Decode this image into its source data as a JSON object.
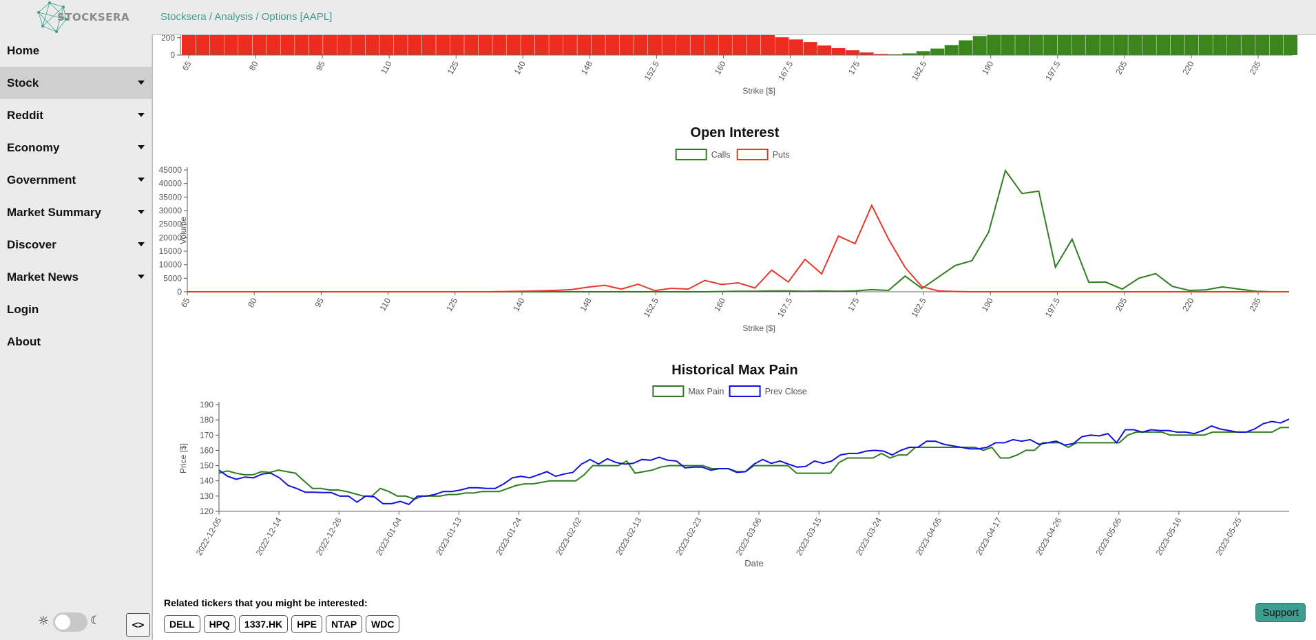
{
  "app": {
    "logo_text": "STOCKSERA",
    "accent": "#3f9d8f"
  },
  "breadcrumb": [
    "Stocksera",
    "Analysis",
    "Options [AAPL]"
  ],
  "sidebar": {
    "items": [
      {
        "label": "Home",
        "has_caret": false,
        "active": false
      },
      {
        "label": "Stock",
        "has_caret": true,
        "active": true
      },
      {
        "label": "Reddit",
        "has_caret": true,
        "active": false
      },
      {
        "label": "Economy",
        "has_caret": true,
        "active": false
      },
      {
        "label": "Government",
        "has_caret": true,
        "active": false
      },
      {
        "label": "Market Summary",
        "has_caret": true,
        "active": false
      },
      {
        "label": "Discover",
        "has_caret": true,
        "active": false
      },
      {
        "label": "Market News",
        "has_caret": true,
        "active": false
      },
      {
        "label": "Login",
        "has_caret": false,
        "active": false
      },
      {
        "label": "About",
        "has_caret": false,
        "active": false
      }
    ],
    "code_toggle": "<>"
  },
  "theme_toggle": {
    "sun_icon": "☼",
    "moon_icon": "☾"
  },
  "related": {
    "label": "Related tickers that you might be interested:",
    "tickers": [
      "DELL",
      "HPQ",
      "1337.HK",
      "HPE",
      "NTAP",
      "WDC"
    ]
  },
  "support": {
    "label": "Support"
  },
  "chart_data": [
    {
      "type": "bar",
      "title": "",
      "xlabel": "Strike [$]",
      "ylabel": "",
      "ylim": [
        0,
        250
      ],
      "y_ticks": [
        0,
        200
      ],
      "tick_labels": [
        "65",
        "80",
        "95",
        "110",
        "125",
        "140",
        "148",
        "152.5",
        "160",
        "167.5",
        "175",
        "182.5",
        "190",
        "197.5",
        "205",
        "220",
        "235"
      ],
      "red_values": [
        250,
        250,
        250,
        250,
        250,
        250,
        250,
        250,
        250,
        250,
        250,
        250,
        250,
        250,
        250,
        250,
        250,
        250,
        250,
        250,
        250,
        250,
        250,
        250,
        250,
        250,
        250,
        250,
        250,
        250,
        250,
        250,
        250,
        250,
        250,
        250,
        250,
        250,
        250,
        250,
        250,
        240,
        205,
        180,
        150,
        110,
        80,
        55,
        30,
        12
      ],
      "green_values": [
        8,
        20,
        45,
        75,
        115,
        170,
        220,
        250,
        250,
        250,
        250,
        250,
        250,
        250,
        250,
        250,
        250,
        250,
        250,
        250,
        250,
        250,
        250,
        250,
        250,
        250,
        250,
        250,
        250
      ]
    },
    {
      "type": "line",
      "title": "Open Interest",
      "xlabel": "Strike [$]",
      "ylabel": "Volume",
      "ylim": [
        0,
        45000
      ],
      "y_ticks": [
        0,
        5000,
        10000,
        15000,
        20000,
        25000,
        30000,
        35000,
        40000,
        45000
      ],
      "tick_labels": [
        "65",
        "80",
        "95",
        "110",
        "125",
        "140",
        "148",
        "152.5",
        "160",
        "167.5",
        "175",
        "182.5",
        "190",
        "197.5",
        "205",
        "220",
        "235"
      ],
      "legend": [
        "Calls",
        "Puts"
      ],
      "series": [
        {
          "name": "Calls",
          "color": "#2e7d1e",
          "values": [
            0,
            0,
            0,
            0,
            0,
            0,
            0,
            0,
            0,
            0,
            0,
            0,
            0,
            0,
            0,
            0,
            0,
            0,
            0,
            0,
            0,
            0,
            0,
            0,
            0,
            0,
            0,
            0,
            0,
            0,
            0,
            0,
            100,
            200,
            200,
            300,
            300,
            200,
            300,
            200,
            300,
            800,
            500,
            5800,
            1200,
            5500,
            9700,
            11500,
            22000,
            44800,
            36300,
            37200,
            9100,
            19400,
            3500,
            3600,
            1000,
            5000,
            6700,
            2000,
            500,
            700,
            1800,
            1000,
            200,
            0,
            0
          ]
        },
        {
          "name": "Puts",
          "color": "#e8362a",
          "values": [
            0,
            0,
            0,
            0,
            0,
            0,
            0,
            0,
            0,
            0,
            0,
            0,
            0,
            0,
            0,
            0,
            0,
            0,
            0,
            100,
            200,
            300,
            500,
            800,
            1700,
            2400,
            1000,
            2800,
            400,
            1300,
            1000,
            4200,
            2700,
            3300,
            1400,
            8000,
            3600,
            12000,
            6600,
            20600,
            17800,
            31900,
            19500,
            9000,
            1900,
            300,
            100,
            0,
            0,
            0,
            0,
            0,
            0,
            0,
            0,
            0,
            0,
            0,
            0,
            0,
            0,
            0,
            0,
            0,
            0,
            0,
            0
          ]
        }
      ]
    },
    {
      "type": "line",
      "title": "Historical Max Pain",
      "xlabel": "Date",
      "ylabel": "Price [$]",
      "ylim": [
        120,
        190
      ],
      "y_ticks": [
        120,
        130,
        140,
        150,
        160,
        170,
        180,
        190
      ],
      "tick_labels": [
        "2022-12-05",
        "2022-12-14",
        "2022-12-26",
        "2023-01-04",
        "2023-01-13",
        "2023-01-24",
        "2023-02-02",
        "2023-02-13",
        "2023-02-23",
        "2023-03-06",
        "2023-03-15",
        "2023-03-24",
        "2023-04-05",
        "2023-04-17",
        "2023-04-26",
        "2023-05-05",
        "2023-05-16",
        "2023-05-25"
      ],
      "legend": [
        "Max Pain",
        "Prev Close"
      ],
      "series": [
        {
          "name": "Max Pain",
          "color": "#2e7d1e",
          "values": [
            145,
            146.5,
            145,
            144,
            144,
            146,
            145.5,
            147,
            146,
            145,
            140,
            135,
            135,
            134,
            134,
            133,
            131.5,
            130,
            130,
            135,
            133,
            130,
            130,
            128,
            130,
            130,
            130,
            131,
            131,
            132,
            132,
            133,
            133,
            133,
            135,
            137,
            138,
            138,
            139,
            140,
            140,
            140,
            140,
            144,
            150,
            150,
            150,
            150,
            153,
            145,
            146,
            147,
            149,
            150,
            150,
            150,
            150,
            150,
            148,
            148,
            148,
            146,
            146,
            150,
            150,
            150,
            150,
            150,
            145,
            145,
            145,
            145,
            145,
            152,
            155,
            155,
            155,
            155,
            158,
            155,
            157,
            157,
            162,
            162,
            162,
            162,
            162,
            162,
            162,
            162,
            160,
            162,
            155,
            155,
            157,
            160,
            160,
            165,
            165,
            165,
            162,
            165,
            165,
            165,
            165,
            165,
            165,
            170,
            172,
            172,
            172,
            172,
            170,
            170,
            170,
            170,
            170,
            172,
            172,
            172,
            172,
            172,
            172,
            172,
            172,
            175,
            175
          ]
        },
        {
          "name": "Prev Close",
          "color": "#1111dd",
          "values": [
            147,
            143,
            141,
            142.5,
            142,
            144.5,
            145,
            142,
            137,
            135,
            132.5,
            132.5,
            132.3,
            132.3,
            130,
            130,
            126,
            130,
            129.5,
            125,
            125,
            126.5,
            124.5,
            130,
            130,
            131,
            133,
            133,
            134,
            135.5,
            135.5,
            135,
            135,
            138,
            142,
            143,
            142,
            144,
            146,
            143,
            144.5,
            145.5,
            151,
            154,
            151,
            154.5,
            152,
            151,
            151.5,
            154,
            153.5,
            155.5,
            153.5,
            153,
            148.5,
            149,
            149,
            147,
            148,
            148,
            145.5,
            146,
            151,
            154,
            151.5,
            153,
            151,
            149,
            149.5,
            153,
            151.5,
            153,
            157,
            158,
            158,
            159.5,
            160,
            159.5,
            157,
            160,
            162,
            162,
            166,
            166,
            164,
            163,
            162,
            161,
            161,
            162,
            165,
            165,
            167,
            166,
            167,
            164,
            165,
            166,
            163.5,
            164.5,
            169,
            170,
            169.5,
            171,
            165,
            173.5,
            173.5,
            172,
            173.5,
            173,
            173,
            172,
            172,
            171,
            173,
            176,
            174,
            173,
            172,
            172,
            174,
            177.5,
            179,
            178,
            180.5
          ]
        }
      ]
    }
  ]
}
